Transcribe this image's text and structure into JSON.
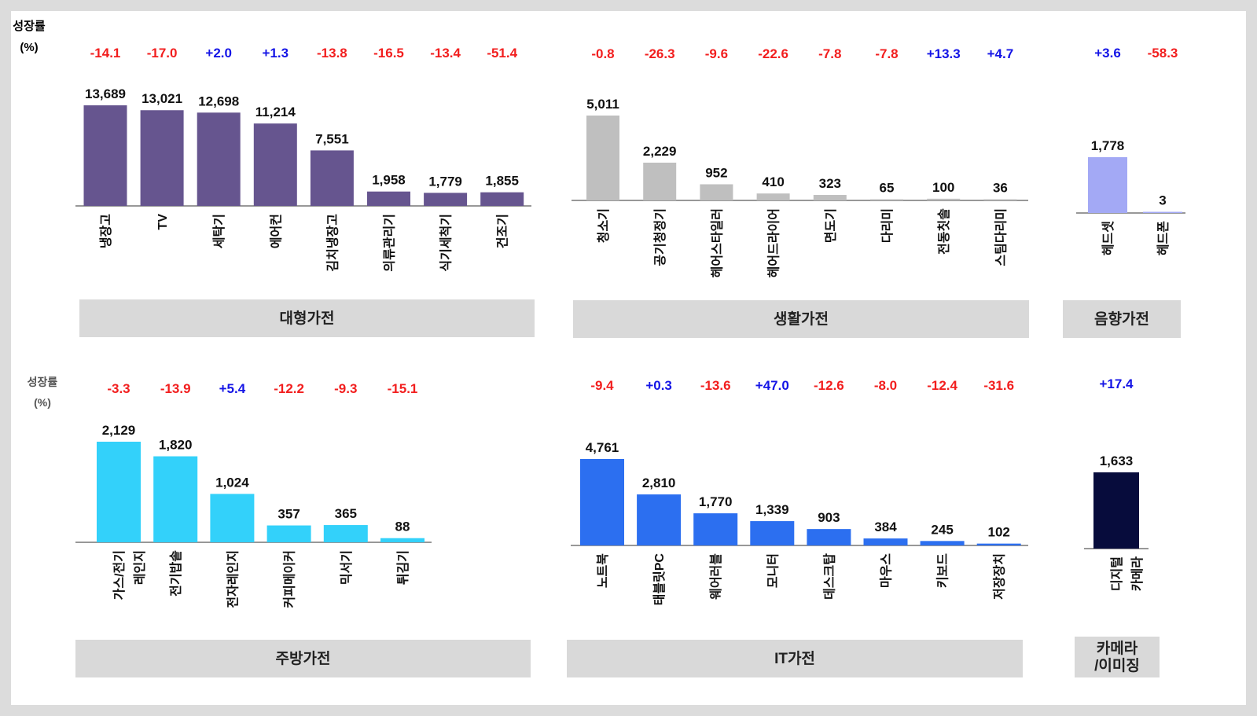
{
  "chart_data": [
    {
      "type": "bar",
      "title": "대형가전",
      "growth_label": "성장률\n(%)",
      "color": "#66558f",
      "categories": [
        "냉장고",
        "TV",
        "세탁기",
        "에어컨",
        "김치냉장고",
        "의류관리기",
        "식기세척기",
        "건조기"
      ],
      "values": [
        13689,
        13021,
        12698,
        11214,
        7551,
        1958,
        1779,
        1855
      ],
      "value_labels": [
        "13,689",
        "13,021",
        "12,698",
        "11,214",
        "7,551",
        "1,958",
        "1,779",
        "1,855"
      ],
      "growth": [
        "-14.1",
        "-17.0",
        "+2.0",
        "+1.3",
        "-13.8",
        "-16.5",
        "-13.4",
        "-51.4"
      ]
    },
    {
      "type": "bar",
      "title": "생활가전",
      "color": "#bfbfbf",
      "categories": [
        "청소기",
        "공기청정기",
        "헤어스타일러",
        "헤어드라이어",
        "면도기",
        "다리미",
        "전동칫솔",
        "스팀다리미"
      ],
      "values": [
        5011,
        2229,
        952,
        410,
        323,
        65,
        100,
        36
      ],
      "value_labels": [
        "5,011",
        "2,229",
        "952",
        "410",
        "323",
        "65",
        "100",
        "36"
      ],
      "growth": [
        "-0.8",
        "-26.3",
        "-9.6",
        "-22.6",
        "-7.8",
        "-7.8",
        "+13.3",
        "+4.7"
      ]
    },
    {
      "type": "bar",
      "title": "음향가전",
      "color": "#a3a9f5",
      "categories": [
        "헤드셋",
        "헤드폰"
      ],
      "values": [
        1778,
        3
      ],
      "value_labels": [
        "1,778",
        "3"
      ],
      "growth": [
        "+3.6",
        "-58.3"
      ]
    },
    {
      "type": "bar",
      "title": "주방가전",
      "growth_label": "성장률\n(%)",
      "color": "#33d1fa",
      "categories": [
        "가스/전기\n레인지",
        "전기밥솥",
        "전자레인지",
        "커피메이커",
        "믹서기",
        "튀김기"
      ],
      "values": [
        2129,
        1820,
        1024,
        357,
        365,
        88
      ],
      "value_labels": [
        "2,129",
        "1,820",
        "1,024",
        "357",
        "365",
        "88"
      ],
      "growth": [
        "-3.3",
        "-13.9",
        "+5.4",
        "-12.2",
        "-9.3",
        "-15.1"
      ]
    },
    {
      "type": "bar",
      "title": "IT가전",
      "color": "#2c6ff0",
      "categories": [
        "노트북",
        "태블릿PC",
        "웨어러블",
        "모니터",
        "데스크탑",
        "마우스",
        "키보드",
        "저장장치"
      ],
      "values": [
        4761,
        2810,
        1770,
        1339,
        903,
        384,
        245,
        102
      ],
      "value_labels": [
        "4,761",
        "2,810",
        "1,770",
        "1,339",
        "903",
        "384",
        "245",
        "102"
      ],
      "growth": [
        "-9.4",
        "+0.3",
        "-13.6",
        "+47.0",
        "-12.6",
        "-8.0",
        "-12.4",
        "-31.6"
      ]
    },
    {
      "type": "bar",
      "title": "카메라\n/이미징",
      "color": "#070c3c",
      "categories": [
        "디지털\n카메라"
      ],
      "values": [
        1633
      ],
      "value_labels": [
        "1,633"
      ],
      "growth": [
        "+17.4"
      ]
    }
  ]
}
